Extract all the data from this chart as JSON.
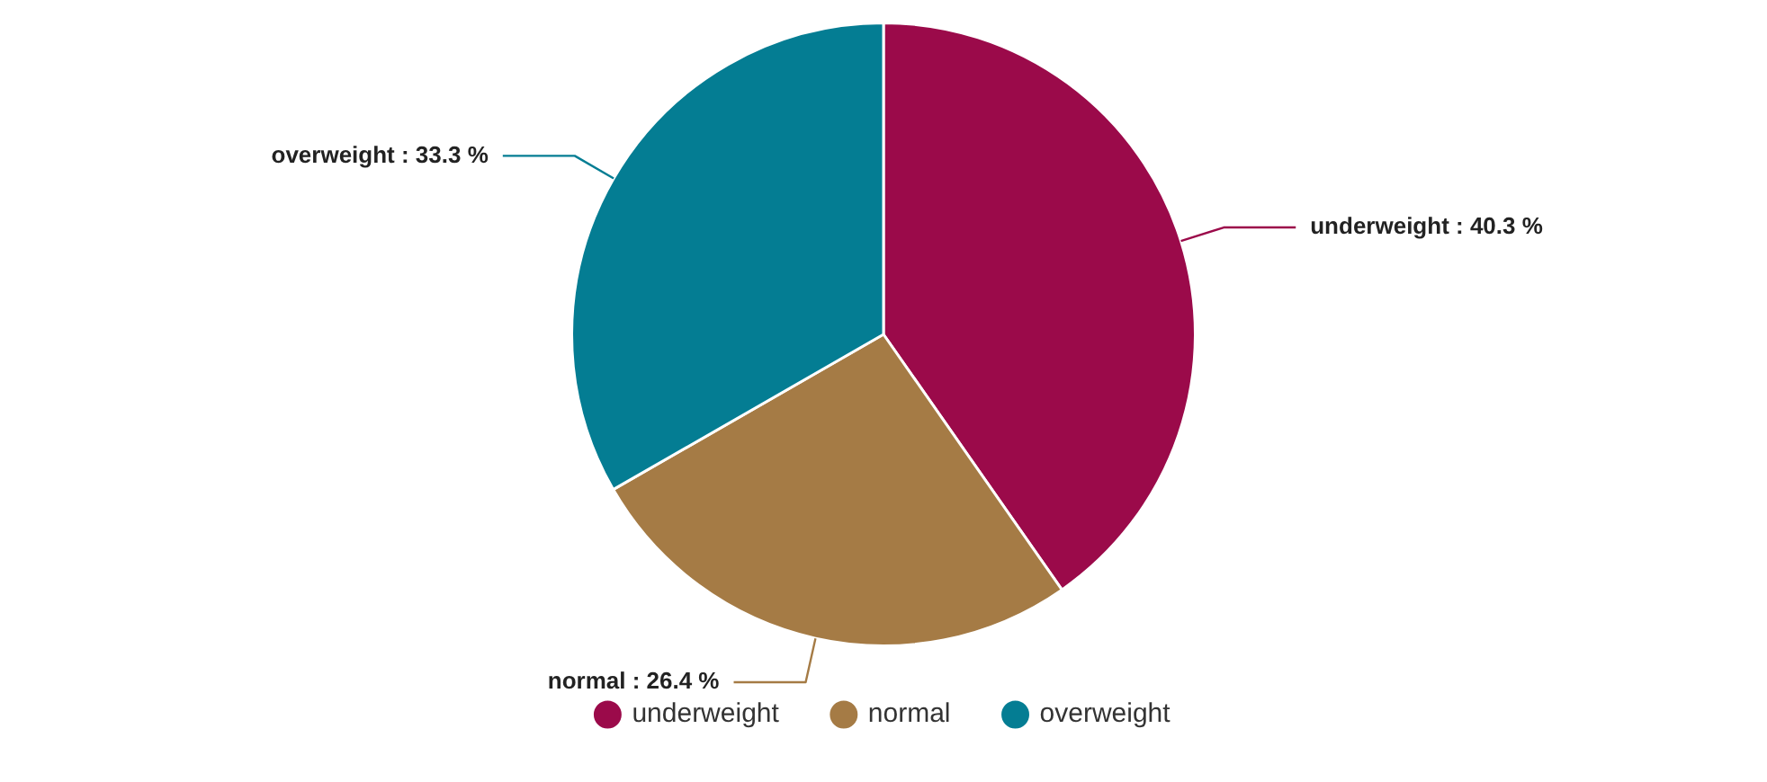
{
  "chart_data": {
    "type": "pie",
    "categories": [
      "underweight",
      "normal",
      "overweight"
    ],
    "values": [
      40.3,
      26.4,
      33.3
    ],
    "colors": [
      "#9b0a4a",
      "#a57b45",
      "#047d93"
    ],
    "value_labels": [
      "underweight : 40.3 %",
      "normal : 26.4 %",
      "overweight : 33.3 %"
    ],
    "legend": "bottom"
  }
}
